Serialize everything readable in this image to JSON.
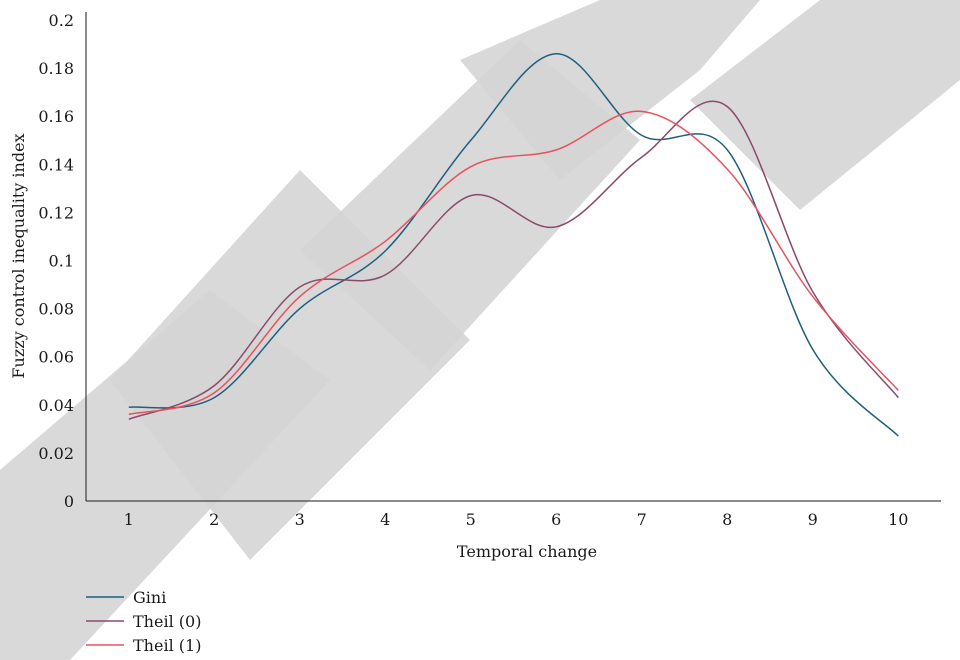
{
  "chart_data": {
    "type": "line",
    "xlabel": "Temporal change",
    "ylabel": "Fuzzy control inequality index",
    "x": [
      1,
      2,
      3,
      4,
      5,
      6,
      7,
      8,
      9,
      10
    ],
    "xticks": [
      "1",
      "2",
      "3",
      "4",
      "5",
      "6",
      "7",
      "8",
      "9",
      "10"
    ],
    "xlim": [
      0.5,
      10.5
    ],
    "ylim": [
      0,
      0.2
    ],
    "yticks": [
      "0",
      "0.02",
      "0.04",
      "0.06",
      "0.08",
      "0.1",
      "0.12",
      "0.14",
      "0.16",
      "0.18",
      "0.2"
    ],
    "grid": false,
    "legend_position": "bottom-left",
    "series": [
      {
        "name": "Gini",
        "color": "#1f5f7f",
        "values": [
          0.039,
          0.043,
          0.08,
          0.104,
          0.15,
          0.186,
          0.152,
          0.146,
          0.063,
          0.027
        ]
      },
      {
        "name": "Theil (0)",
        "color": "#8b4a6b",
        "values": [
          0.034,
          0.048,
          0.089,
          0.094,
          0.127,
          0.114,
          0.143,
          0.164,
          0.087,
          0.043
        ]
      },
      {
        "name": "Theil (1)",
        "color": "#e8525f",
        "values": [
          0.036,
          0.045,
          0.085,
          0.108,
          0.139,
          0.146,
          0.162,
          0.138,
          0.085,
          0.046
        ]
      }
    ]
  }
}
